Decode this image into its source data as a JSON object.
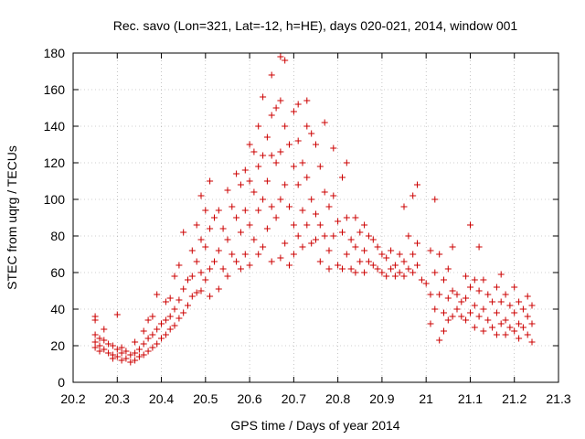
{
  "chart_data": {
    "type": "scatter",
    "title": "Rec. savo (Lon=321, Lat=-12, h=HE), days 020-021, 2014, window 001",
    "xlabel": "GPS time / Days of year 2014",
    "ylabel": "STEC from uqrg / TECUs",
    "xlim": [
      20.2,
      21.3
    ],
    "ylim": [
      0,
      180
    ],
    "xticks": [
      "20.2",
      "20.3",
      "20.4",
      "20.5",
      "20.6",
      "20.7",
      "20.8",
      "20.9",
      "21",
      "21.1",
      "21.2",
      "21.3"
    ],
    "yticks": [
      "0",
      "20",
      "40",
      "60",
      "80",
      "100",
      "120",
      "140",
      "160",
      "180"
    ],
    "grid": true,
    "marker": "+",
    "color": "#cc0000",
    "series": [
      {
        "name": "STEC",
        "points": [
          [
            20.25,
            36
          ],
          [
            20.25,
            34
          ],
          [
            20.25,
            26
          ],
          [
            20.25,
            22
          ],
          [
            20.25,
            19
          ],
          [
            20.26,
            24
          ],
          [
            20.26,
            20
          ],
          [
            20.26,
            17
          ],
          [
            20.27,
            29
          ],
          [
            20.27,
            23
          ],
          [
            20.27,
            18
          ],
          [
            20.28,
            21
          ],
          [
            20.28,
            16
          ],
          [
            20.29,
            20
          ],
          [
            20.29,
            15
          ],
          [
            20.29,
            13
          ],
          [
            20.3,
            37
          ],
          [
            20.3,
            18
          ],
          [
            20.3,
            14
          ],
          [
            20.31,
            19
          ],
          [
            20.31,
            16
          ],
          [
            20.31,
            12
          ],
          [
            20.32,
            17
          ],
          [
            20.32,
            13
          ],
          [
            20.33,
            15
          ],
          [
            20.33,
            11
          ],
          [
            20.34,
            22
          ],
          [
            20.34,
            16
          ],
          [
            20.34,
            12
          ],
          [
            20.35,
            18
          ],
          [
            20.35,
            14
          ],
          [
            20.36,
            28
          ],
          [
            20.36,
            21
          ],
          [
            20.36,
            15
          ],
          [
            20.37,
            34
          ],
          [
            20.37,
            24
          ],
          [
            20.37,
            17
          ],
          [
            20.38,
            36
          ],
          [
            20.38,
            26
          ],
          [
            20.38,
            19
          ],
          [
            20.39,
            48
          ],
          [
            20.39,
            29
          ],
          [
            20.39,
            21
          ],
          [
            20.4,
            32
          ],
          [
            20.4,
            24
          ],
          [
            20.41,
            44
          ],
          [
            20.41,
            34
          ],
          [
            20.41,
            26
          ],
          [
            20.42,
            46
          ],
          [
            20.42,
            36
          ],
          [
            20.42,
            29
          ],
          [
            20.43,
            58
          ],
          [
            20.43,
            40
          ],
          [
            20.43,
            31
          ],
          [
            20.44,
            64
          ],
          [
            20.44,
            45
          ],
          [
            20.44,
            35
          ],
          [
            20.45,
            82
          ],
          [
            20.45,
            51
          ],
          [
            20.45,
            38
          ],
          [
            20.46,
            56
          ],
          [
            20.46,
            42
          ],
          [
            20.47,
            72
          ],
          [
            20.47,
            58
          ],
          [
            20.47,
            47
          ],
          [
            20.48,
            86
          ],
          [
            20.48,
            66
          ],
          [
            20.48,
            49
          ],
          [
            20.49,
            102
          ],
          [
            20.49,
            78
          ],
          [
            20.49,
            60
          ],
          [
            20.49,
            50
          ],
          [
            20.5,
            94
          ],
          [
            20.5,
            74
          ],
          [
            20.5,
            56
          ],
          [
            20.51,
            110
          ],
          [
            20.51,
            84
          ],
          [
            20.51,
            62
          ],
          [
            20.51,
            47
          ],
          [
            20.52,
            90
          ],
          [
            20.52,
            66
          ],
          [
            20.53,
            94
          ],
          [
            20.53,
            72
          ],
          [
            20.53,
            51
          ],
          [
            20.54,
            84
          ],
          [
            20.54,
            62
          ],
          [
            20.55,
            105
          ],
          [
            20.55,
            78
          ],
          [
            20.55,
            58
          ],
          [
            20.56,
            96
          ],
          [
            20.56,
            70
          ],
          [
            20.57,
            114
          ],
          [
            20.57,
            90
          ],
          [
            20.57,
            66
          ],
          [
            20.58,
            108
          ],
          [
            20.58,
            82
          ],
          [
            20.58,
            62
          ],
          [
            20.59,
            116
          ],
          [
            20.59,
            94
          ],
          [
            20.59,
            70
          ],
          [
            20.6,
            130
          ],
          [
            20.6,
            110
          ],
          [
            20.6,
            86
          ],
          [
            20.6,
            64
          ],
          [
            20.61,
            126
          ],
          [
            20.61,
            104
          ],
          [
            20.61,
            78
          ],
          [
            20.62,
            140
          ],
          [
            20.62,
            118
          ],
          [
            20.62,
            94
          ],
          [
            20.62,
            70
          ],
          [
            20.63,
            156
          ],
          [
            20.63,
            124
          ],
          [
            20.63,
            100
          ],
          [
            20.63,
            74
          ],
          [
            20.64,
            134
          ],
          [
            20.64,
            110
          ],
          [
            20.64,
            84
          ],
          [
            20.65,
            168
          ],
          [
            20.65,
            146
          ],
          [
            20.65,
            124
          ],
          [
            20.65,
            96
          ],
          [
            20.65,
            66
          ],
          [
            20.66,
            150
          ],
          [
            20.66,
            120
          ],
          [
            20.66,
            90
          ],
          [
            20.67,
            178
          ],
          [
            20.67,
            154
          ],
          [
            20.67,
            126
          ],
          [
            20.67,
            100
          ],
          [
            20.67,
            68
          ],
          [
            20.68,
            176
          ],
          [
            20.68,
            140
          ],
          [
            20.68,
            108
          ],
          [
            20.68,
            76
          ],
          [
            20.69,
            130
          ],
          [
            20.69,
            96
          ],
          [
            20.69,
            64
          ],
          [
            20.7,
            148
          ],
          [
            20.7,
            118
          ],
          [
            20.7,
            86
          ],
          [
            20.7,
            70
          ],
          [
            20.71,
            152
          ],
          [
            20.71,
            132
          ],
          [
            20.71,
            108
          ],
          [
            20.71,
            80
          ],
          [
            20.72,
            120
          ],
          [
            20.72,
            94
          ],
          [
            20.72,
            74
          ],
          [
            20.73,
            154
          ],
          [
            20.73,
            140
          ],
          [
            20.73,
            112
          ],
          [
            20.73,
            86
          ],
          [
            20.74,
            136
          ],
          [
            20.74,
            100
          ],
          [
            20.74,
            76
          ],
          [
            20.75,
            130
          ],
          [
            20.75,
            92
          ],
          [
            20.75,
            78
          ],
          [
            20.76,
            118
          ],
          [
            20.76,
            86
          ],
          [
            20.76,
            66
          ],
          [
            20.77,
            142
          ],
          [
            20.77,
            104
          ],
          [
            20.77,
            80
          ],
          [
            20.78,
            96
          ],
          [
            20.78,
            72
          ],
          [
            20.78,
            62
          ],
          [
            20.79,
            128
          ],
          [
            20.79,
            102
          ],
          [
            20.79,
            80
          ],
          [
            20.8,
            88
          ],
          [
            20.8,
            64
          ],
          [
            20.81,
            112
          ],
          [
            20.81,
            82
          ],
          [
            20.81,
            62
          ],
          [
            20.82,
            120
          ],
          [
            20.82,
            90
          ],
          [
            20.82,
            70
          ],
          [
            20.83,
            78
          ],
          [
            20.83,
            62
          ],
          [
            20.84,
            90
          ],
          [
            20.84,
            74
          ],
          [
            20.84,
            60
          ],
          [
            20.85,
            82
          ],
          [
            20.85,
            66
          ],
          [
            20.86,
            86
          ],
          [
            20.86,
            72
          ],
          [
            20.86,
            60
          ],
          [
            20.87,
            80
          ],
          [
            20.87,
            66
          ],
          [
            20.88,
            78
          ],
          [
            20.88,
            64
          ],
          [
            20.89,
            74
          ],
          [
            20.89,
            62
          ],
          [
            20.9,
            70
          ],
          [
            20.9,
            60
          ],
          [
            20.91,
            68
          ],
          [
            20.91,
            58
          ],
          [
            20.92,
            72
          ],
          [
            20.92,
            62
          ],
          [
            20.93,
            64
          ],
          [
            20.93,
            58
          ],
          [
            20.94,
            70
          ],
          [
            20.94,
            60
          ],
          [
            20.95,
            96
          ],
          [
            20.95,
            66
          ],
          [
            20.95,
            58
          ],
          [
            20.96,
            80
          ],
          [
            20.96,
            62
          ],
          [
            20.97,
            102
          ],
          [
            20.97,
            70
          ],
          [
            20.97,
            60
          ],
          [
            20.98,
            108
          ],
          [
            20.98,
            76
          ],
          [
            20.98,
            64
          ],
          [
            20.99,
            56
          ],
          [
            21.0,
            54
          ],
          [
            21.01,
            72
          ],
          [
            21.01,
            48
          ],
          [
            21.01,
            32
          ],
          [
            21.02,
            100
          ],
          [
            21.02,
            60
          ],
          [
            21.02,
            40
          ],
          [
            21.03,
            70
          ],
          [
            21.03,
            48
          ],
          [
            21.03,
            23
          ],
          [
            21.04,
            56
          ],
          [
            21.04,
            38
          ],
          [
            21.04,
            28
          ],
          [
            21.05,
            62
          ],
          [
            21.05,
            46
          ],
          [
            21.05,
            34
          ],
          [
            21.06,
            74
          ],
          [
            21.06,
            50
          ],
          [
            21.06,
            36
          ],
          [
            21.07,
            48
          ],
          [
            21.07,
            40
          ],
          [
            21.08,
            44
          ],
          [
            21.08,
            36
          ],
          [
            21.09,
            58
          ],
          [
            21.09,
            46
          ],
          [
            21.09,
            34
          ],
          [
            21.1,
            86
          ],
          [
            21.1,
            52
          ],
          [
            21.1,
            38
          ],
          [
            21.11,
            56
          ],
          [
            21.11,
            42
          ],
          [
            21.11,
            30
          ],
          [
            21.12,
            74
          ],
          [
            21.12,
            50
          ],
          [
            21.12,
            36
          ],
          [
            21.13,
            56
          ],
          [
            21.13,
            40
          ],
          [
            21.13,
            28
          ],
          [
            21.14,
            48
          ],
          [
            21.14,
            34
          ],
          [
            21.15,
            44
          ],
          [
            21.15,
            30
          ],
          [
            21.16,
            52
          ],
          [
            21.16,
            38
          ],
          [
            21.16,
            26
          ],
          [
            21.17,
            59
          ],
          [
            21.17,
            44
          ],
          [
            21.17,
            32
          ],
          [
            21.18,
            48
          ],
          [
            21.18,
            34
          ],
          [
            21.18,
            26
          ],
          [
            21.19,
            42
          ],
          [
            21.19,
            30
          ],
          [
            21.2,
            52
          ],
          [
            21.2,
            38
          ],
          [
            21.2,
            28
          ],
          [
            21.21,
            44
          ],
          [
            21.21,
            32
          ],
          [
            21.21,
            24
          ],
          [
            21.22,
            40
          ],
          [
            21.22,
            30
          ],
          [
            21.23,
            47
          ],
          [
            21.23,
            36
          ],
          [
            21.23,
            26
          ],
          [
            21.24,
            42
          ],
          [
            21.24,
            32
          ],
          [
            21.24,
            22
          ]
        ]
      }
    ]
  }
}
